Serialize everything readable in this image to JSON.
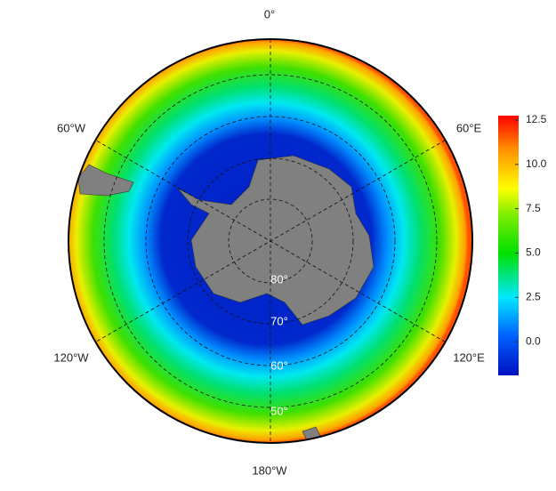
{
  "map": {
    "longitude_labels": [
      "0°",
      "60°E",
      "120°E",
      "180°W",
      "120°W",
      "60°W"
    ],
    "latitude_labels": [
      "80°",
      "70°",
      "60°",
      "50°"
    ]
  },
  "colorbar": {
    "lim": [
      -1.9,
      12.75
    ],
    "ticks": [
      {
        "value": 0,
        "label": "0.0"
      },
      2.5,
      {
        "value": 5,
        "label": "5.0"
      },
      7.5,
      {
        "value": 10,
        "label": "10.0"
      },
      12.5
    ]
  }
}
